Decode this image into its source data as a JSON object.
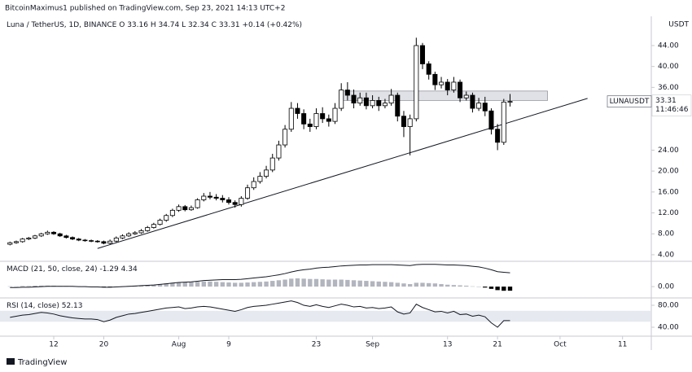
{
  "header": "BitcoinMaximus1 published on TradingView.com, Sep 23, 2021 14:13 UTC+2",
  "footer": "TradingView",
  "chart_data": [
    {
      "type": "candlestick",
      "title": "Luna / TetherUS, 1D, BINANCE",
      "ohlc_labels": [
        "O",
        "H",
        "L",
        "C"
      ],
      "change": "+0.14 (+0.42%)",
      "unit": "USDT",
      "symbol": "LUNAUSDT",
      "countdown": "11:46:46",
      "up_color": "#ffffff",
      "down_color": "#000000",
      "wick_color": "#000000",
      "x": [
        5,
        6,
        7,
        8,
        9,
        10,
        11,
        12,
        13,
        14,
        15,
        16,
        17,
        18,
        19,
        20,
        21,
        22,
        23,
        24,
        25,
        26,
        27,
        28,
        29,
        30,
        31,
        32,
        33,
        34,
        35,
        36,
        37,
        38,
        39,
        40,
        41,
        42,
        43,
        44,
        45,
        46,
        47,
        48,
        49,
        50,
        51,
        52,
        53,
        54,
        55,
        56,
        57,
        58,
        59,
        60,
        61,
        62,
        63,
        64,
        65,
        66,
        67,
        68,
        69,
        70,
        71,
        72,
        73,
        74,
        75,
        76,
        77,
        78,
        79,
        80,
        81,
        82,
        83,
        84,
        85
      ],
      "open": [
        6.0,
        6.3,
        6.5,
        7.0,
        7.2,
        7.6,
        8.0,
        8.3,
        8.0,
        7.6,
        7.3,
        7.0,
        6.8,
        6.7,
        6.6,
        6.5,
        6.2,
        6.6,
        7.2,
        7.6,
        8.0,
        8.2,
        8.6,
        9.2,
        9.8,
        10.6,
        11.5,
        12.5,
        13.2,
        12.6,
        13.0,
        14.5,
        15.2,
        15.0,
        14.8,
        14.5,
        14.0,
        13.6,
        14.8,
        16.8,
        18.0,
        19.0,
        20.2,
        22.5,
        25.0,
        28.0,
        32.0,
        31.0,
        29.0,
        28.5,
        31.0,
        30.0,
        29.5,
        32.0,
        35.5,
        34.5,
        33.0,
        34.0,
        32.5,
        33.5,
        32.5,
        33.0,
        34.5,
        30.5,
        28.5,
        30.0,
        44.0,
        40.5,
        38.5,
        36.5,
        37.0,
        35.5,
        37.0,
        34.0,
        34.5,
        32.0,
        33.0,
        31.5,
        28.0,
        25.5,
        33.16
      ],
      "high": [
        6.5,
        6.7,
        7.2,
        7.4,
        7.8,
        8.2,
        8.6,
        8.5,
        8.2,
        7.8,
        7.5,
        7.2,
        7.0,
        6.9,
        6.8,
        6.7,
        6.9,
        7.5,
        7.9,
        8.3,
        8.5,
        8.9,
        9.5,
        10.1,
        10.9,
        11.8,
        12.8,
        13.6,
        13.5,
        13.4,
        14.8,
        15.8,
        16.0,
        15.6,
        15.4,
        15.0,
        14.4,
        15.2,
        17.4,
        18.8,
        19.8,
        21.0,
        23.3,
        25.8,
        28.8,
        33.2,
        33.0,
        31.8,
        30.0,
        32.0,
        32.2,
        30.8,
        33.0,
        36.8,
        37.0,
        35.6,
        35.0,
        35.0,
        34.5,
        34.2,
        33.8,
        35.7,
        35.0,
        31.5,
        30.8,
        45.5,
        44.5,
        41.0,
        39.0,
        38.0,
        37.6,
        38.0,
        37.5,
        35.2,
        35.0,
        34.0,
        34.2,
        32.0,
        29.0,
        33.8,
        34.74
      ],
      "low": [
        5.8,
        6.1,
        6.3,
        6.8,
        7.0,
        7.4,
        7.8,
        7.8,
        7.4,
        7.1,
        6.8,
        6.6,
        6.5,
        6.4,
        6.3,
        6.0,
        6.0,
        6.4,
        7.0,
        7.4,
        7.8,
        8.0,
        8.4,
        9.0,
        9.6,
        10.3,
        11.2,
        12.2,
        12.3,
        12.4,
        12.8,
        14.2,
        14.6,
        14.4,
        14.0,
        13.6,
        13.0,
        13.2,
        14.5,
        16.4,
        17.6,
        18.6,
        19.8,
        22.0,
        24.5,
        27.5,
        30.0,
        28.0,
        27.5,
        28.0,
        29.2,
        28.5,
        29.0,
        31.5,
        33.5,
        32.0,
        32.5,
        31.8,
        32.0,
        31.5,
        32.0,
        32.5,
        29.5,
        26.5,
        23.0,
        29.5,
        39.5,
        37.5,
        35.5,
        35.8,
        34.5,
        35.0,
        33.2,
        33.5,
        31.2,
        31.5,
        30.5,
        27.0,
        24.0,
        25.0,
        32.34
      ],
      "close": [
        6.3,
        6.5,
        7.0,
        7.2,
        7.6,
        8.0,
        8.3,
        8.0,
        7.6,
        7.3,
        7.0,
        6.8,
        6.7,
        6.6,
        6.5,
        6.2,
        6.6,
        7.2,
        7.6,
        8.0,
        8.2,
        8.6,
        9.2,
        9.8,
        10.6,
        11.5,
        12.5,
        13.2,
        12.6,
        13.0,
        14.5,
        15.2,
        15.0,
        14.8,
        14.5,
        14.0,
        13.6,
        14.8,
        16.8,
        18.0,
        19.0,
        20.2,
        22.5,
        25.0,
        28.0,
        32.0,
        31.0,
        29.0,
        28.5,
        31.0,
        30.0,
        29.5,
        32.0,
        35.5,
        34.5,
        33.0,
        34.0,
        32.5,
        33.5,
        32.5,
        33.0,
        34.5,
        30.5,
        28.5,
        30.0,
        44.0,
        40.5,
        38.5,
        36.5,
        37.0,
        35.5,
        37.0,
        34.0,
        34.5,
        32.0,
        33.0,
        31.5,
        28.0,
        25.5,
        33.2,
        33.31
      ],
      "zone": {
        "x": [
          58,
          91
        ],
        "y": [
          33.5,
          35.3
        ],
        "color": "#d1d4dc"
      },
      "trendline": {
        "x": [
          19,
          97.4
        ],
        "y": [
          5.2,
          33.9
        ],
        "color": "#131722"
      },
      "xlim": [
        3.4,
        107.6
      ],
      "ylim": [
        2.9,
        49.6
      ],
      "yticks": [
        {
          "value": 4,
          "label": "4.00"
        },
        {
          "value": 8,
          "label": "8.00"
        },
        {
          "value": 12,
          "label": "12.00"
        },
        {
          "value": 16,
          "label": "16.00"
        },
        {
          "value": 20,
          "label": "20.00"
        },
        {
          "value": 24,
          "label": "24.00"
        },
        {
          "value": 36,
          "label": "36.00"
        },
        {
          "value": 40,
          "label": "40.00"
        },
        {
          "value": 44,
          "label": "44.00"
        }
      ]
    },
    {
      "type": "macd",
      "title": "MACD (21, 50, close, 24)",
      "x": [
        5,
        6,
        7,
        8,
        9,
        10,
        11,
        12,
        13,
        14,
        15,
        16,
        17,
        18,
        19,
        20,
        21,
        22,
        23,
        24,
        25,
        26,
        27,
        28,
        29,
        30,
        31,
        32,
        33,
        34,
        35,
        36,
        37,
        38,
        39,
        40,
        41,
        42,
        43,
        44,
        45,
        46,
        47,
        48,
        49,
        50,
        51,
        52,
        53,
        54,
        55,
        56,
        57,
        58,
        59,
        60,
        61,
        62,
        63,
        64,
        65,
        66,
        67,
        68,
        69,
        70,
        71,
        72,
        73,
        74,
        75,
        76,
        77,
        78,
        79,
        80,
        81,
        82,
        83,
        84,
        85
      ],
      "histogram": {
        "positive_color": "#b2b5be",
        "negative_color": "#000000",
        "values": [
          0.1,
          0.1,
          0.2,
          0.2,
          0.3,
          0.3,
          0.3,
          0.3,
          0.2,
          0.2,
          0.1,
          0.1,
          0.1,
          0.0,
          0.0,
          -0.1,
          -0.1,
          0.0,
          0.1,
          0.2,
          0.3,
          0.4,
          0.5,
          0.6,
          0.8,
          1.0,
          1.2,
          1.3,
          1.3,
          1.4,
          1.5,
          1.6,
          1.6,
          1.5,
          1.4,
          1.3,
          1.2,
          1.2,
          1.3,
          1.4,
          1.5,
          1.6,
          1.8,
          2.0,
          2.2,
          2.5,
          2.6,
          2.5,
          2.4,
          2.4,
          2.3,
          2.2,
          2.2,
          2.2,
          2.1,
          2.0,
          1.9,
          1.8,
          1.7,
          1.6,
          1.5,
          1.4,
          1.2,
          1.0,
          0.8,
          1.2,
          1.2,
          1.1,
          1.0,
          0.8,
          0.6,
          0.5,
          0.4,
          0.3,
          0.1,
          0.0,
          -0.3,
          -0.7,
          -1.1,
          -1.3,
          -1.29
        ]
      },
      "line": {
        "color": "#131722",
        "values": [
          -0.3,
          -0.3,
          -0.2,
          -0.2,
          -0.1,
          0.0,
          0.1,
          0.1,
          0.1,
          0.1,
          0.1,
          0.0,
          0.0,
          -0.1,
          -0.1,
          -0.2,
          -0.2,
          -0.1,
          0.0,
          0.1,
          0.2,
          0.3,
          0.4,
          0.5,
          0.7,
          0.9,
          1.1,
          1.3,
          1.4,
          1.5,
          1.7,
          1.9,
          2.0,
          2.1,
          2.2,
          2.2,
          2.2,
          2.3,
          2.5,
          2.7,
          2.9,
          3.1,
          3.4,
          3.7,
          4.1,
          4.6,
          5.0,
          5.3,
          5.5,
          5.8,
          6.0,
          6.1,
          6.3,
          6.5,
          6.6,
          6.7,
          6.8,
          6.8,
          6.9,
          6.9,
          6.9,
          6.9,
          6.8,
          6.7,
          6.6,
          6.9,
          7.0,
          7.0,
          7.0,
          6.9,
          6.8,
          6.8,
          6.7,
          6.6,
          6.4,
          6.2,
          5.8,
          5.3,
          4.7,
          4.5,
          4.34
        ]
      },
      "xlim": [
        3.4,
        107.6
      ],
      "ylim": [
        -3.3,
        7.7
      ],
      "yticks": [
        {
          "value": 0,
          "label": "0.00"
        }
      ]
    },
    {
      "type": "line",
      "title": "RSI (14, close)",
      "x": [
        5,
        6,
        7,
        8,
        9,
        10,
        11,
        12,
        13,
        14,
        15,
        16,
        17,
        18,
        19,
        20,
        21,
        22,
        23,
        24,
        25,
        26,
        27,
        28,
        29,
        30,
        31,
        32,
        33,
        34,
        35,
        36,
        37,
        38,
        39,
        40,
        41,
        42,
        43,
        44,
        45,
        46,
        47,
        48,
        49,
        50,
        51,
        52,
        53,
        54,
        55,
        56,
        57,
        58,
        59,
        60,
        61,
        62,
        63,
        64,
        65,
        66,
        67,
        68,
        69,
        70,
        71,
        72,
        73,
        74,
        75,
        76,
        77,
        78,
        79,
        80,
        81,
        82,
        83,
        84,
        85
      ],
      "values": [
        58,
        60,
        62,
        63,
        65,
        67,
        66,
        64,
        61,
        59,
        57,
        56,
        55,
        55,
        54,
        50,
        53,
        58,
        61,
        64,
        65,
        67,
        69,
        71,
        73,
        75,
        76,
        77,
        74,
        75,
        77,
        78,
        77,
        75,
        73,
        71,
        69,
        72,
        76,
        78,
        79,
        80,
        82,
        84,
        86,
        88,
        85,
        80,
        78,
        81,
        78,
        76,
        79,
        82,
        80,
        77,
        78,
        75,
        76,
        74,
        75,
        77,
        68,
        64,
        66,
        82,
        76,
        72,
        68,
        69,
        66,
        69,
        63,
        64,
        60,
        62,
        59,
        48,
        40,
        52,
        52.13
      ],
      "color": "#131722",
      "band": [
        50,
        70
      ],
      "band_color": "#e0e3eb",
      "xlim": [
        3.4,
        107.6
      ],
      "ylim": [
        25.2,
        91.9
      ],
      "yticks": [
        {
          "value": 80,
          "label": "80.00"
        },
        {
          "value": 40,
          "label": "40.00"
        }
      ],
      "xticks": [
        12,
        20,
        {
          "value": 32,
          "label": "Aug"
        },
        {
          "value": 40,
          "label": "9"
        },
        {
          "value": 54,
          "label": "23"
        },
        {
          "value": 63,
          "label": "Sep"
        },
        {
          "value": 75,
          "label": "13"
        },
        {
          "value": 83,
          "label": "21"
        },
        {
          "value": 93,
          "label": "Oct"
        },
        {
          "value": 103,
          "label": "11"
        }
      ]
    }
  ]
}
